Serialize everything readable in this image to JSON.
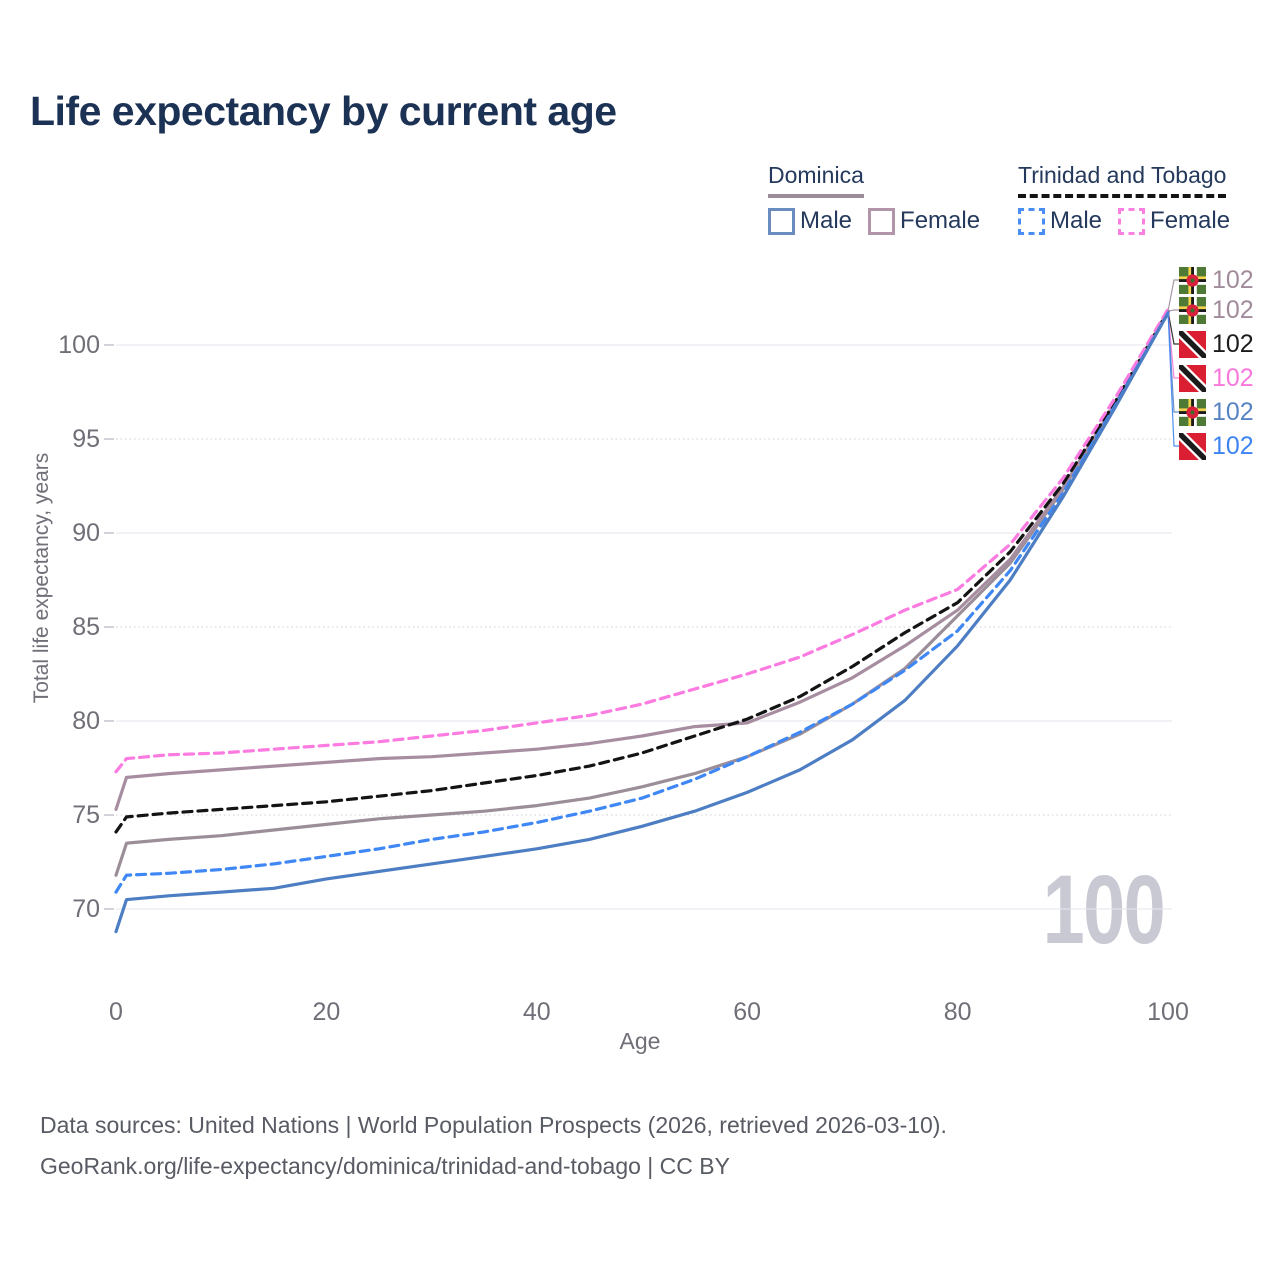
{
  "title": "Life expectancy by current age",
  "colors": {
    "title_text": "#1b3254",
    "axis_text": "#6f6f78",
    "grid_solid": "#e6e6ec",
    "grid_dotted": "#cfcfd8",
    "watermark": "#c9c9d4",
    "footer_text": "#585b63",
    "legend_text": "#24395c"
  },
  "legend": {
    "groups": [
      {
        "country": "Dominica",
        "line_style": "solid",
        "line_color": "#9b8e99",
        "items": [
          {
            "label": "Male",
            "color": "#6b8cc0",
            "dashed": false
          },
          {
            "label": "Female",
            "color": "#b295a9",
            "dashed": false
          }
        ]
      },
      {
        "country": "Trinidad and Tobago",
        "line_style": "dashed",
        "line_color": "#141414",
        "items": [
          {
            "label": "Male",
            "color": "#4a8df5",
            "dashed": true
          },
          {
            "label": "Female",
            "color": "#fb80e2",
            "dashed": true
          }
        ]
      }
    ]
  },
  "axes": {
    "x": {
      "label": "Age",
      "ticks": [
        0,
        20,
        40,
        60,
        80,
        100
      ]
    },
    "y": {
      "label": "Total life expectancy, years",
      "ticks": [
        70,
        75,
        80,
        85,
        90,
        95,
        100
      ]
    }
  },
  "watermark": "100",
  "end_labels": [
    {
      "flag": "dominica",
      "value": "102",
      "color": "#a18b9b"
    },
    {
      "flag": "dominica",
      "value": "102",
      "color": "#a18b9b"
    },
    {
      "flag": "trinidad",
      "value": "102",
      "color": "#1c1c1c"
    },
    {
      "flag": "trinidad",
      "value": "102",
      "color": "#f878dc"
    },
    {
      "flag": "dominica",
      "value": "102",
      "color": "#5884c4"
    },
    {
      "flag": "trinidad",
      "value": "102",
      "color": "#3d84f2"
    }
  ],
  "footer": {
    "line1": "Data sources: United Nations | World Population Prospects (2026, retrieved 2026-03-10).",
    "line2": "GeoRank.org/life-expectancy/dominica/trinidad-and-tobago | CC BY"
  },
  "chart_data": {
    "type": "line",
    "title": "Life expectancy by current age",
    "xlabel": "Age",
    "ylabel": "Total life expectancy, years",
    "xlim": [
      0,
      100
    ],
    "ylim": [
      68,
      103
    ],
    "grid": "horizontal",
    "legend_position": "top-right",
    "x": [
      0,
      1,
      5,
      10,
      15,
      20,
      25,
      30,
      35,
      40,
      45,
      50,
      55,
      60,
      65,
      70,
      75,
      80,
      85,
      90,
      95,
      100
    ],
    "series": [
      {
        "name": "Dominica Male",
        "country": "Dominica",
        "sex": "Male",
        "color": "#4d7ec3",
        "dash": "solid",
        "values": [
          68.8,
          70.5,
          70.7,
          70.9,
          71.1,
          71.6,
          72.0,
          72.4,
          72.8,
          73.2,
          73.7,
          74.4,
          75.2,
          76.2,
          77.4,
          79.0,
          81.1,
          84.0,
          87.5,
          91.9,
          96.7,
          101.7
        ]
      },
      {
        "name": "Dominica Female",
        "country": "Dominica",
        "sex": "Female",
        "color": "#a78da0",
        "dash": "solid",
        "values": [
          75.3,
          77.0,
          77.2,
          77.4,
          77.6,
          77.8,
          78.0,
          78.1,
          78.3,
          78.5,
          78.8,
          79.2,
          79.7,
          79.9,
          81.0,
          82.3,
          84.0,
          85.9,
          88.6,
          92.4,
          96.9,
          101.8
        ]
      },
      {
        "name": "Dominica (both sexes)",
        "country": "Dominica",
        "sex": "Both",
        "color": "#9b8e99",
        "dash": "solid",
        "values": [
          71.8,
          73.5,
          73.7,
          73.9,
          74.2,
          74.5,
          74.8,
          75.0,
          75.2,
          75.5,
          75.9,
          76.5,
          77.2,
          78.1,
          79.3,
          80.9,
          82.8,
          85.6,
          88.4,
          92.3,
          96.9,
          101.8
        ]
      },
      {
        "name": "Trinidad and Tobago Male",
        "country": "Trinidad and Tobago",
        "sex": "Male",
        "color": "#3f87f5",
        "dash": "dashed",
        "values": [
          70.9,
          71.8,
          71.9,
          72.1,
          72.4,
          72.8,
          73.2,
          73.7,
          74.1,
          74.6,
          75.2,
          75.9,
          76.9,
          78.1,
          79.4,
          80.9,
          82.7,
          84.8,
          88.0,
          92.1,
          96.8,
          101.7
        ]
      },
      {
        "name": "Trinidad and Tobago Female",
        "country": "Trinidad and Tobago",
        "sex": "Female",
        "color": "#fb7be0",
        "dash": "dashed",
        "values": [
          77.3,
          78.0,
          78.2,
          78.3,
          78.5,
          78.7,
          78.9,
          79.2,
          79.5,
          79.9,
          80.3,
          80.9,
          81.7,
          82.5,
          83.4,
          84.6,
          85.9,
          87.0,
          89.4,
          92.9,
          97.2,
          101.9
        ]
      },
      {
        "name": "Trinidad and Tobago (both sexes)",
        "country": "Trinidad and Tobago",
        "sex": "Both",
        "color": "#141414",
        "dash": "dashed",
        "values": [
          74.1,
          74.9,
          75.1,
          75.3,
          75.5,
          75.7,
          76.0,
          76.3,
          76.7,
          77.1,
          77.6,
          78.3,
          79.2,
          80.1,
          81.3,
          82.9,
          84.7,
          86.3,
          89.0,
          92.6,
          97.0,
          101.8
        ]
      }
    ]
  }
}
